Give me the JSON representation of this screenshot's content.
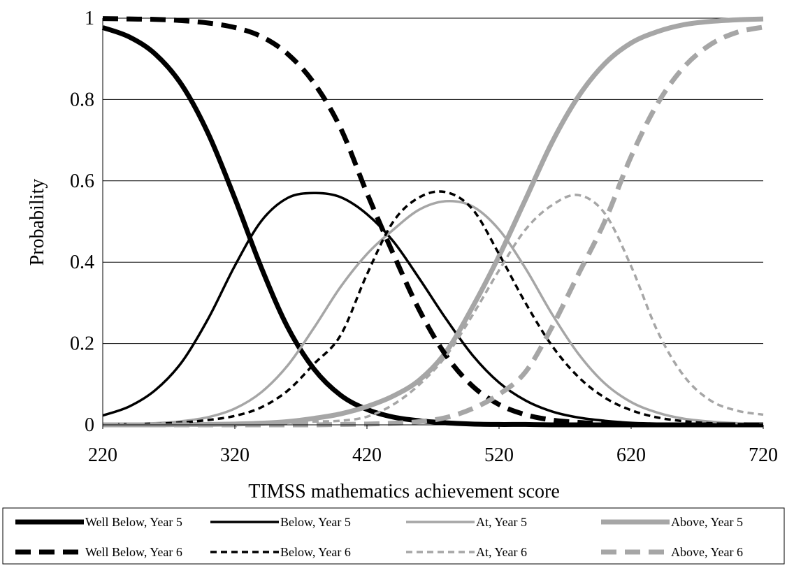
{
  "chart_data": {
    "type": "line",
    "xlabel": "TIMSS mathematics achievement score",
    "ylabel": "Probability",
    "xlim": [
      220,
      720
    ],
    "ylim": [
      0,
      1
    ],
    "x_ticks": [
      220,
      320,
      420,
      520,
      620,
      720
    ],
    "y_ticks": [
      {
        "value": 0,
        "label": "0"
      },
      {
        "value": 0.2,
        "label": "0.2"
      },
      {
        "value": 0.4,
        "label": "0.4"
      },
      {
        "value": 0.6,
        "label": "0.6"
      },
      {
        "value": 0.8,
        "label": "0.8"
      },
      {
        "value": 1,
        "label": "1"
      }
    ],
    "grid": "horizontal",
    "legend_position": "bottom",
    "x": [
      220,
      240,
      260,
      280,
      300,
      320,
      340,
      360,
      380,
      400,
      420,
      440,
      460,
      480,
      500,
      520,
      540,
      560,
      580,
      600,
      620,
      640,
      660,
      680,
      700,
      720
    ],
    "series": [
      {
        "name": "Well Below, Year 5",
        "color": "#000000",
        "style": "solid",
        "weight": "thick",
        "values": [
          0.977,
          0.954,
          0.911,
          0.835,
          0.715,
          0.557,
          0.387,
          0.24,
          0.137,
          0.073,
          0.038,
          0.019,
          0.01,
          0.005,
          0.002,
          0.001,
          0.001,
          0,
          0,
          0,
          0,
          0,
          0,
          0,
          0,
          0
        ]
      },
      {
        "name": "Below, Year 5",
        "color": "#000000",
        "style": "solid",
        "weight": "thin",
        "values": [
          0.023,
          0.045,
          0.086,
          0.155,
          0.262,
          0.391,
          0.501,
          0.558,
          0.57,
          0.56,
          0.518,
          0.451,
          0.358,
          0.26,
          0.171,
          0.104,
          0.06,
          0.033,
          0.018,
          0.01,
          0.005,
          0.003,
          0.001,
          0.001,
          0,
          0
        ]
      },
      {
        "name": "At, Year 5",
        "color": "#a6a6a6",
        "style": "solid",
        "weight": "thin",
        "values": [
          0.001,
          0.002,
          0.004,
          0.009,
          0.019,
          0.04,
          0.08,
          0.146,
          0.239,
          0.339,
          0.42,
          0.48,
          0.53,
          0.55,
          0.537,
          0.48,
          0.385,
          0.273,
          0.175,
          0.102,
          0.056,
          0.03,
          0.015,
          0.008,
          0.004,
          0.002
        ]
      },
      {
        "name": "Above, Year 5",
        "color": "#a6a6a6",
        "style": "solid",
        "weight": "thick",
        "values": [
          0,
          0,
          0,
          0.001,
          0.001,
          0.002,
          0.004,
          0.008,
          0.016,
          0.027,
          0.045,
          0.071,
          0.111,
          0.18,
          0.29,
          0.415,
          0.554,
          0.694,
          0.807,
          0.888,
          0.939,
          0.967,
          0.984,
          0.992,
          0.996,
          0.998
        ]
      },
      {
        "name": "Well Below, Year 6",
        "color": "#000000",
        "style": "dashed",
        "weight": "thick",
        "values": [
          0.999,
          0.998,
          0.997,
          0.994,
          0.988,
          0.977,
          0.955,
          0.912,
          0.84,
          0.73,
          0.57,
          0.42,
          0.28,
          0.17,
          0.095,
          0.05,
          0.025,
          0.012,
          0.006,
          0.003,
          0.001,
          0,
          0,
          0,
          0,
          0
        ]
      },
      {
        "name": "Below, Year 6",
        "color": "#000000",
        "style": "dashed",
        "weight": "thin",
        "values": [
          0.001,
          0.002,
          0.003,
          0.006,
          0.012,
          0.022,
          0.043,
          0.084,
          0.15,
          0.22,
          0.37,
          0.5,
          0.56,
          0.572,
          0.53,
          0.42,
          0.3,
          0.195,
          0.118,
          0.067,
          0.036,
          0.018,
          0.009,
          0.004,
          0.002,
          0.001
        ]
      },
      {
        "name": "At, Year 6",
        "color": "#a6a6a6",
        "style": "dashed",
        "weight": "thin",
        "values": [
          0,
          0,
          0,
          0,
          0,
          0.001,
          0.002,
          0.004,
          0.008,
          0.01,
          0.02,
          0.05,
          0.1,
          0.17,
          0.27,
          0.38,
          0.48,
          0.54,
          0.565,
          0.52,
          0.39,
          0.23,
          0.12,
          0.06,
          0.035,
          0.025
        ]
      },
      {
        "name": "Above, Year 6",
        "color": "#a6a6a6",
        "style": "dashed",
        "weight": "thick",
        "values": [
          0,
          0,
          0,
          0,
          0,
          0,
          0,
          0,
          0,
          0.001,
          0.002,
          0.004,
          0.008,
          0.018,
          0.04,
          0.075,
          0.13,
          0.24,
          0.37,
          0.5,
          0.66,
          0.79,
          0.88,
          0.935,
          0.965,
          0.978
        ]
      }
    ]
  }
}
